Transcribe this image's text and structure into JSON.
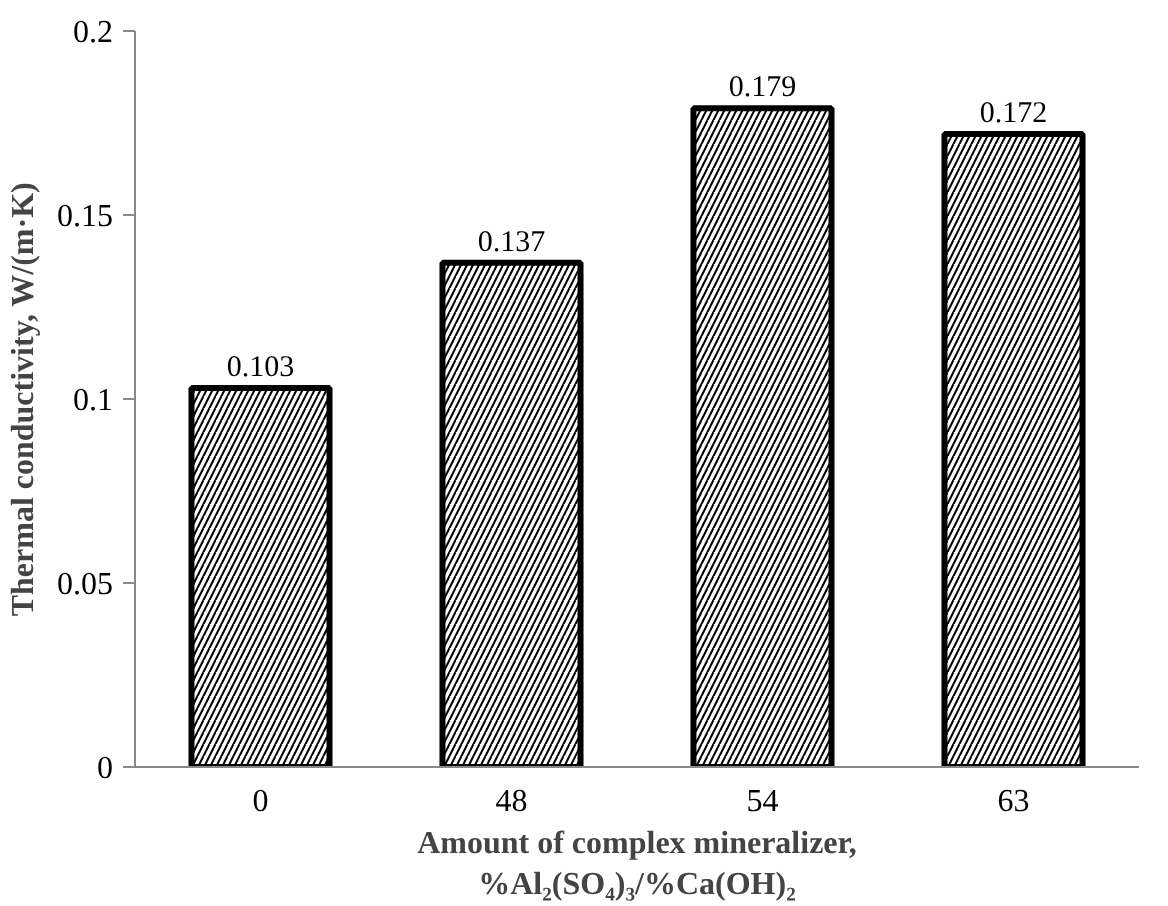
{
  "chart_data": {
    "type": "bar",
    "xlabel": "Amount of complex mineralizer,\n%Al₂(SO₄)₃/%Ca(OH)₂",
    "ylabel": "Thermal conductivity, W/(m·K)",
    "categories": [
      "0",
      "48",
      "54",
      "63"
    ],
    "values": [
      0.103,
      0.137,
      0.179,
      0.172
    ],
    "color": "#ffffff",
    "ylim": [
      0,
      0.2
    ],
    "yticks": [
      {
        "value": 0,
        "label": "0"
      },
      {
        "value": 0.05,
        "label": "0.05"
      },
      {
        "value": 0.1,
        "label": "0.1"
      },
      {
        "value": 0.15,
        "label": "0.15"
      },
      {
        "value": 0.2,
        "label": "0.2"
      }
    ],
    "data_labels": true,
    "grid": false
  }
}
